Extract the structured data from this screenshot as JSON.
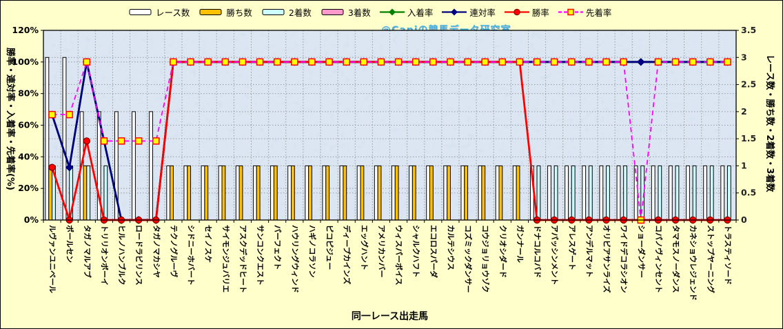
{
  "watermark": "@Caniの競馬データ研究室",
  "colors": {
    "background": "#FFFFCC",
    "plot_background": "#C9D9EB",
    "grid": "#9B9B9B",
    "race_bar": "#FFFFFF",
    "win_bar": "#FFC000",
    "second_bar": "#CCFFFF",
    "third_bar": "#FF99CC",
    "nyuchaku_line": "#008000",
    "rentai_line": "#000080",
    "shoritsu_line": "#FF0000",
    "senchaku_line": "#FF00FF",
    "senchaku_marker_fill": "#FFFF00",
    "senchaku_marker_stroke": "#FF0000"
  },
  "legend": {
    "items": [
      {
        "label": "レース数",
        "type": "bar",
        "color": "#FFFFFF"
      },
      {
        "label": "勝ち数",
        "type": "bar",
        "color": "#FFC000"
      },
      {
        "label": "2着数",
        "type": "bar",
        "color": "#CCFFFF"
      },
      {
        "label": "3着数",
        "type": "bar",
        "color": "#FF99CC"
      },
      {
        "label": "入着率",
        "type": "line",
        "color": "#008000",
        "marker": "diamond",
        "dash": false
      },
      {
        "label": "連対率",
        "type": "line",
        "color": "#000080",
        "marker": "diamond",
        "dash": false
      },
      {
        "label": "勝率",
        "type": "line",
        "color": "#FF0000",
        "marker": "circle",
        "dash": false
      },
      {
        "label": "先着率",
        "type": "line",
        "color": "#FF00FF",
        "marker": "square",
        "dash": true,
        "marker_fill": "#FFFF00",
        "marker_stroke": "#FF0000"
      }
    ]
  },
  "chart_data": {
    "type": "combo bar+line (dual axis)",
    "title": "",
    "x_title": "同一レース出走馬",
    "legend_position": "top",
    "grid": true,
    "left_axis": {
      "title": "勝率・連対率・入着率・先着率(%)",
      "ticks": [
        "0%",
        "20%",
        "40%",
        "60%",
        "80%",
        "100%",
        "120%"
      ],
      "min": 0,
      "max": 120
    },
    "right_axis": {
      "title": "レース数・勝ち数・2着数・3着数",
      "ticks": [
        "0",
        "0.5",
        "1",
        "1.5",
        "2",
        "2.5",
        "3",
        "3.5"
      ],
      "min": 0,
      "max": 3.5
    },
    "categories": [
      "ルヴァンユニベール",
      "ポールセン",
      "タガノマルアブ",
      "トリリオンボーイ",
      "ヒルノハンブルク",
      "ロードラビリンス",
      "タガノマカシヤ",
      "テクノグルーヴ",
      "シドニーホバート",
      "セイノスケ",
      "サイモンジュバリエ",
      "アスクデッドヒート",
      "サンコンクエスト",
      "パーフェクト",
      "ハウリングウィンド",
      "ハギノコラソン",
      "ピコピジュー",
      "ディープカインズ",
      "エッグハント",
      "アメリカンバー",
      "ウィスパーボイス",
      "シャルクハフト",
      "エコロスパーダ",
      "カルテシウス",
      "コズミックダンサー",
      "コウジョリョウゾク",
      "クリオシダード",
      "ガンナール",
      "ドナコルコバド",
      "アパッシンメント",
      "アレスゲート",
      "アンデルマット",
      "オリビアサンライズ",
      "ワイドデコラシオン",
      "ショーダンサー",
      "コパノヴィンセント",
      "タマモスノーダンス",
      "カネショウレジェンド",
      "ストップヤーニング",
      "トラスティソード"
    ],
    "bar_series": [
      {
        "name": "レース数",
        "axis": "right",
        "color": "#FFFFFF",
        "values": [
          3,
          3,
          2,
          2,
          2,
          2,
          2,
          1,
          1,
          1,
          1,
          1,
          1,
          1,
          1,
          1,
          1,
          1,
          1,
          1,
          1,
          1,
          1,
          1,
          1,
          1,
          1,
          1,
          1,
          1,
          1,
          1,
          1,
          1,
          1,
          1,
          1,
          1,
          1,
          1
        ]
      },
      {
        "name": "勝ち数",
        "axis": "right",
        "color": "#FFC000",
        "values": [
          1,
          0,
          1,
          0,
          0,
          0,
          0,
          1,
          1,
          1,
          1,
          1,
          1,
          1,
          1,
          1,
          1,
          1,
          1,
          1,
          1,
          1,
          1,
          1,
          1,
          1,
          1,
          1,
          0,
          0,
          0,
          0,
          0,
          0,
          0,
          0,
          0,
          0,
          0,
          0
        ]
      },
      {
        "name": "2着数",
        "axis": "right",
        "color": "#CCFFFF",
        "values": [
          1,
          1,
          1,
          1,
          0,
          0,
          0,
          0,
          0,
          0,
          0,
          0,
          0,
          0,
          0,
          0,
          0,
          0,
          0,
          0,
          0,
          0,
          0,
          0,
          0,
          0,
          0,
          0,
          1,
          1,
          1,
          1,
          1,
          1,
          1,
          1,
          1,
          1,
          1,
          1
        ]
      },
      {
        "name": "3着数",
        "axis": "right",
        "color": "#FF99CC",
        "values": [
          0,
          0,
          0,
          0,
          0,
          0,
          0,
          0,
          0,
          0,
          0,
          0,
          0,
          0,
          0,
          0,
          0,
          0,
          0,
          0,
          0,
          0,
          0,
          0,
          0,
          0,
          0,
          0,
          0,
          0,
          0,
          0,
          0,
          0,
          0,
          0,
          0,
          0,
          0,
          0
        ]
      }
    ],
    "line_series": [
      {
        "name": "入着率",
        "axis": "left",
        "color": "#008000",
        "marker": "diamond",
        "dash": false,
        "values": [
          66.7,
          33.3,
          100,
          50,
          0,
          0,
          0,
          100,
          100,
          100,
          100,
          100,
          100,
          100,
          100,
          100,
          100,
          100,
          100,
          100,
          100,
          100,
          100,
          100,
          100,
          100,
          100,
          100,
          100,
          100,
          100,
          100,
          100,
          100,
          100,
          100,
          100,
          100,
          100,
          100
        ]
      },
      {
        "name": "連対率",
        "axis": "left",
        "color": "#000080",
        "marker": "diamond",
        "dash": false,
        "values": [
          66.7,
          33.3,
          100,
          50,
          0,
          0,
          0,
          100,
          100,
          100,
          100,
          100,
          100,
          100,
          100,
          100,
          100,
          100,
          100,
          100,
          100,
          100,
          100,
          100,
          100,
          100,
          100,
          100,
          100,
          100,
          100,
          100,
          100,
          100,
          100,
          100,
          100,
          100,
          100,
          100
        ]
      },
      {
        "name": "勝率",
        "axis": "left",
        "color": "#FF0000",
        "marker": "circle",
        "dash": false,
        "values": [
          33.3,
          0,
          50,
          0,
          0,
          0,
          0,
          100,
          100,
          100,
          100,
          100,
          100,
          100,
          100,
          100,
          100,
          100,
          100,
          100,
          100,
          100,
          100,
          100,
          100,
          100,
          100,
          100,
          0,
          0,
          0,
          0,
          0,
          0,
          0,
          0,
          0,
          0,
          0,
          0
        ]
      },
      {
        "name": "先着率",
        "axis": "left",
        "color": "#FF00FF",
        "marker": "square",
        "dash": true,
        "marker_fill": "#FFFF00",
        "marker_stroke": "#FF0000",
        "values": [
          66.7,
          66.7,
          100,
          50,
          50,
          50,
          50,
          100,
          100,
          100,
          100,
          100,
          100,
          100,
          100,
          100,
          100,
          100,
          100,
          100,
          100,
          100,
          100,
          100,
          100,
          100,
          100,
          100,
          100,
          100,
          100,
          100,
          100,
          100,
          0,
          100,
          100,
          100,
          100,
          100
        ]
      }
    ]
  }
}
